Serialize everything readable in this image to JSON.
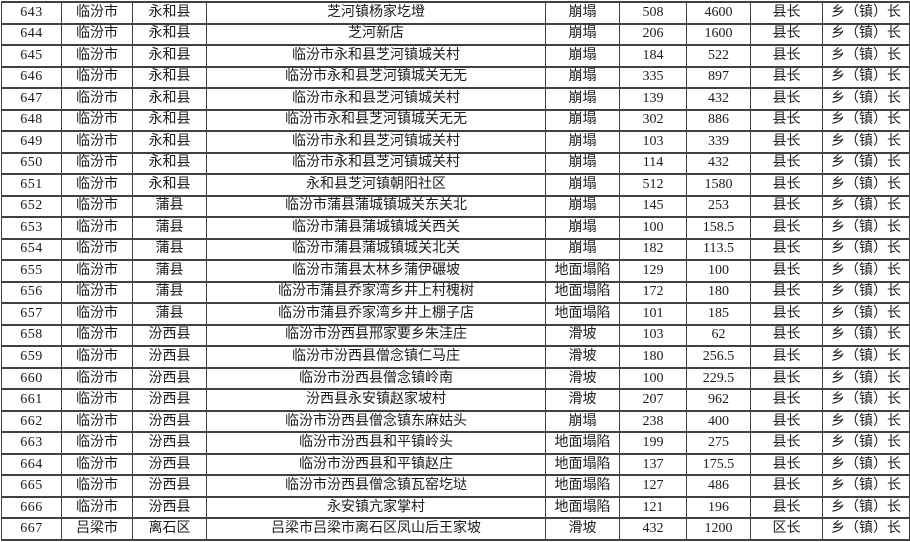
{
  "table": {
    "description": "geological disaster points list (rows 643-667)",
    "fields": [
      "no",
      "city",
      "county",
      "location",
      "type",
      "num1",
      "num2",
      "leader1",
      "leader2"
    ],
    "rows": [
      {
        "no": "643",
        "city": "临汾市",
        "county": "永和县",
        "location": "芝河镇杨家圪墱",
        "type": "崩塌",
        "num1": "508",
        "num2": "4600",
        "leader1": "县长",
        "leader2": "乡（镇）长"
      },
      {
        "no": "644",
        "city": "临汾市",
        "county": "永和县",
        "location": "芝河新店",
        "type": "崩塌",
        "num1": "206",
        "num2": "1600",
        "leader1": "县长",
        "leader2": "乡（镇）长"
      },
      {
        "no": "645",
        "city": "临汾市",
        "county": "永和县",
        "location": "临汾市永和县芝河镇城关村",
        "type": "崩塌",
        "num1": "184",
        "num2": "522",
        "leader1": "县长",
        "leader2": "乡（镇）长"
      },
      {
        "no": "646",
        "city": "临汾市",
        "county": "永和县",
        "location": "临汾市永和县芝河镇城关无无",
        "type": "崩塌",
        "num1": "335",
        "num2": "897",
        "leader1": "县长",
        "leader2": "乡（镇）长"
      },
      {
        "no": "647",
        "city": "临汾市",
        "county": "永和县",
        "location": "临汾市永和县芝河镇城关村",
        "type": "崩塌",
        "num1": "139",
        "num2": "432",
        "leader1": "县长",
        "leader2": "乡（镇）长"
      },
      {
        "no": "648",
        "city": "临汾市",
        "county": "永和县",
        "location": "临汾市永和县芝河镇城关无无",
        "type": "崩塌",
        "num1": "302",
        "num2": "886",
        "leader1": "县长",
        "leader2": "乡（镇）长"
      },
      {
        "no": "649",
        "city": "临汾市",
        "county": "永和县",
        "location": "临汾市永和县芝河镇城关村",
        "type": "崩塌",
        "num1": "103",
        "num2": "339",
        "leader1": "县长",
        "leader2": "乡（镇）长"
      },
      {
        "no": "650",
        "city": "临汾市",
        "county": "永和县",
        "location": "临汾市永和县芝河镇城关村",
        "type": "崩塌",
        "num1": "114",
        "num2": "432",
        "leader1": "县长",
        "leader2": "乡（镇）长"
      },
      {
        "no": "651",
        "city": "临汾市",
        "county": "永和县",
        "location": "永和县芝河镇朝阳社区",
        "type": "崩塌",
        "num1": "512",
        "num2": "1580",
        "leader1": "县长",
        "leader2": "乡（镇）长"
      },
      {
        "no": "652",
        "city": "临汾市",
        "county": "蒲县",
        "location": "临汾市蒲县蒲城镇城关东关北",
        "type": "崩塌",
        "num1": "145",
        "num2": "253",
        "leader1": "县长",
        "leader2": "乡（镇）长"
      },
      {
        "no": "653",
        "city": "临汾市",
        "county": "蒲县",
        "location": "临汾市蒲县蒲城镇城关西关",
        "type": "崩塌",
        "num1": "100",
        "num2": "158.5",
        "leader1": "县长",
        "leader2": "乡（镇）长"
      },
      {
        "no": "654",
        "city": "临汾市",
        "county": "蒲县",
        "location": "临汾市蒲县蒲城镇城关北关",
        "type": "崩塌",
        "num1": "182",
        "num2": "113.5",
        "leader1": "县长",
        "leader2": "乡（镇）长"
      },
      {
        "no": "655",
        "city": "临汾市",
        "county": "蒲县",
        "location": "临汾市蒲县太林乡蒲伊碾坡",
        "type": "地面塌陷",
        "num1": "129",
        "num2": "100",
        "leader1": "县长",
        "leader2": "乡（镇）长"
      },
      {
        "no": "656",
        "city": "临汾市",
        "county": "蒲县",
        "location": "临汾市蒲县乔家湾乡井上村槐树",
        "type": "地面塌陷",
        "num1": "172",
        "num2": "180",
        "leader1": "县长",
        "leader2": "乡（镇）长"
      },
      {
        "no": "657",
        "city": "临汾市",
        "county": "蒲县",
        "location": "临汾市蒲县乔家湾乡井上棚子店",
        "type": "地面塌陷",
        "num1": "101",
        "num2": "185",
        "leader1": "县长",
        "leader2": "乡（镇）长"
      },
      {
        "no": "658",
        "city": "临汾市",
        "county": "汾西县",
        "location": "临汾市汾西县邢家要乡朱洼庄",
        "type": "滑坡",
        "num1": "103",
        "num2": "62",
        "leader1": "县长",
        "leader2": "乡（镇）长"
      },
      {
        "no": "659",
        "city": "临汾市",
        "county": "汾西县",
        "location": "临汾市汾西县僧念镇仁马庄",
        "type": "滑坡",
        "num1": "180",
        "num2": "256.5",
        "leader1": "县长",
        "leader2": "乡（镇）长"
      },
      {
        "no": "660",
        "city": "临汾市",
        "county": "汾西县",
        "location": "临汾市汾西县僧念镇岭南",
        "type": "滑坡",
        "num1": "100",
        "num2": "229.5",
        "leader1": "县长",
        "leader2": "乡（镇）长"
      },
      {
        "no": "661",
        "city": "临汾市",
        "county": "汾西县",
        "location": "汾西县永安镇赵家坡村",
        "type": "滑坡",
        "num1": "207",
        "num2": "962",
        "leader1": "县长",
        "leader2": "乡（镇）长"
      },
      {
        "no": "662",
        "city": "临汾市",
        "county": "汾西县",
        "location": "临汾市汾西县僧念镇东麻姑头",
        "type": "崩塌",
        "num1": "238",
        "num2": "400",
        "leader1": "县长",
        "leader2": "乡（镇）长"
      },
      {
        "no": "663",
        "city": "临汾市",
        "county": "汾西县",
        "location": "临汾市汾西县和平镇岭头",
        "type": "地面塌陷",
        "num1": "199",
        "num2": "275",
        "leader1": "县长",
        "leader2": "乡（镇）长"
      },
      {
        "no": "664",
        "city": "临汾市",
        "county": "汾西县",
        "location": "临汾市汾西县和平镇赵庄",
        "type": "地面塌陷",
        "num1": "137",
        "num2": "175.5",
        "leader1": "县长",
        "leader2": "乡（镇）长"
      },
      {
        "no": "665",
        "city": "临汾市",
        "county": "汾西县",
        "location": "临汾市汾西县僧念镇瓦窑圪垯",
        "type": "地面塌陷",
        "num1": "127",
        "num2": "486",
        "leader1": "县长",
        "leader2": "乡（镇）长"
      },
      {
        "no": "666",
        "city": "临汾市",
        "county": "汾西县",
        "location": "永安镇亢家掌村",
        "type": "地面塌陷",
        "num1": "121",
        "num2": "196",
        "leader1": "县长",
        "leader2": "乡（镇）长"
      },
      {
        "no": "667",
        "city": "吕梁市",
        "county": "离石区",
        "location": "吕梁市吕梁市离石区凤山后王家坡",
        "type": "滑坡",
        "num1": "432",
        "num2": "1200",
        "leader1": "区长",
        "leader2": "乡（镇）长"
      }
    ]
  }
}
